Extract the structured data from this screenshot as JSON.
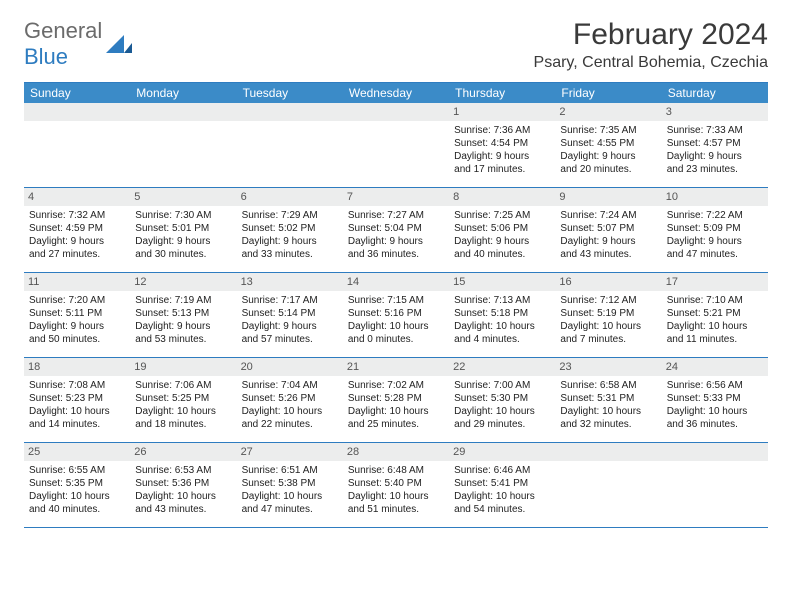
{
  "brand": {
    "part1": "General",
    "part2": "Blue"
  },
  "title": "February 2024",
  "location": "Psary, Central Bohemia, Czechia",
  "colors": {
    "header_bg": "#3b8bc8",
    "accent": "#2e7cc0",
    "daynum_bg": "#eceded",
    "text": "#222222",
    "page_bg": "#ffffff"
  },
  "day_headers": [
    "Sunday",
    "Monday",
    "Tuesday",
    "Wednesday",
    "Thursday",
    "Friday",
    "Saturday"
  ],
  "weeks": [
    [
      null,
      null,
      null,
      null,
      {
        "n": "1",
        "sr": "7:36 AM",
        "ss": "4:54 PM",
        "d1": "9 hours",
        "d2": "and 17 minutes."
      },
      {
        "n": "2",
        "sr": "7:35 AM",
        "ss": "4:55 PM",
        "d1": "9 hours",
        "d2": "and 20 minutes."
      },
      {
        "n": "3",
        "sr": "7:33 AM",
        "ss": "4:57 PM",
        "d1": "9 hours",
        "d2": "and 23 minutes."
      }
    ],
    [
      {
        "n": "4",
        "sr": "7:32 AM",
        "ss": "4:59 PM",
        "d1": "9 hours",
        "d2": "and 27 minutes."
      },
      {
        "n": "5",
        "sr": "7:30 AM",
        "ss": "5:01 PM",
        "d1": "9 hours",
        "d2": "and 30 minutes."
      },
      {
        "n": "6",
        "sr": "7:29 AM",
        "ss": "5:02 PM",
        "d1": "9 hours",
        "d2": "and 33 minutes."
      },
      {
        "n": "7",
        "sr": "7:27 AM",
        "ss": "5:04 PM",
        "d1": "9 hours",
        "d2": "and 36 minutes."
      },
      {
        "n": "8",
        "sr": "7:25 AM",
        "ss": "5:06 PM",
        "d1": "9 hours",
        "d2": "and 40 minutes."
      },
      {
        "n": "9",
        "sr": "7:24 AM",
        "ss": "5:07 PM",
        "d1": "9 hours",
        "d2": "and 43 minutes."
      },
      {
        "n": "10",
        "sr": "7:22 AM",
        "ss": "5:09 PM",
        "d1": "9 hours",
        "d2": "and 47 minutes."
      }
    ],
    [
      {
        "n": "11",
        "sr": "7:20 AM",
        "ss": "5:11 PM",
        "d1": "9 hours",
        "d2": "and 50 minutes."
      },
      {
        "n": "12",
        "sr": "7:19 AM",
        "ss": "5:13 PM",
        "d1": "9 hours",
        "d2": "and 53 minutes."
      },
      {
        "n": "13",
        "sr": "7:17 AM",
        "ss": "5:14 PM",
        "d1": "9 hours",
        "d2": "and 57 minutes."
      },
      {
        "n": "14",
        "sr": "7:15 AM",
        "ss": "5:16 PM",
        "d1": "10 hours",
        "d2": "and 0 minutes."
      },
      {
        "n": "15",
        "sr": "7:13 AM",
        "ss": "5:18 PM",
        "d1": "10 hours",
        "d2": "and 4 minutes."
      },
      {
        "n": "16",
        "sr": "7:12 AM",
        "ss": "5:19 PM",
        "d1": "10 hours",
        "d2": "and 7 minutes."
      },
      {
        "n": "17",
        "sr": "7:10 AM",
        "ss": "5:21 PM",
        "d1": "10 hours",
        "d2": "and 11 minutes."
      }
    ],
    [
      {
        "n": "18",
        "sr": "7:08 AM",
        "ss": "5:23 PM",
        "d1": "10 hours",
        "d2": "and 14 minutes."
      },
      {
        "n": "19",
        "sr": "7:06 AM",
        "ss": "5:25 PM",
        "d1": "10 hours",
        "d2": "and 18 minutes."
      },
      {
        "n": "20",
        "sr": "7:04 AM",
        "ss": "5:26 PM",
        "d1": "10 hours",
        "d2": "and 22 minutes."
      },
      {
        "n": "21",
        "sr": "7:02 AM",
        "ss": "5:28 PM",
        "d1": "10 hours",
        "d2": "and 25 minutes."
      },
      {
        "n": "22",
        "sr": "7:00 AM",
        "ss": "5:30 PM",
        "d1": "10 hours",
        "d2": "and 29 minutes."
      },
      {
        "n": "23",
        "sr": "6:58 AM",
        "ss": "5:31 PM",
        "d1": "10 hours",
        "d2": "and 32 minutes."
      },
      {
        "n": "24",
        "sr": "6:56 AM",
        "ss": "5:33 PM",
        "d1": "10 hours",
        "d2": "and 36 minutes."
      }
    ],
    [
      {
        "n": "25",
        "sr": "6:55 AM",
        "ss": "5:35 PM",
        "d1": "10 hours",
        "d2": "and 40 minutes."
      },
      {
        "n": "26",
        "sr": "6:53 AM",
        "ss": "5:36 PM",
        "d1": "10 hours",
        "d2": "and 43 minutes."
      },
      {
        "n": "27",
        "sr": "6:51 AM",
        "ss": "5:38 PM",
        "d1": "10 hours",
        "d2": "and 47 minutes."
      },
      {
        "n": "28",
        "sr": "6:48 AM",
        "ss": "5:40 PM",
        "d1": "10 hours",
        "d2": "and 51 minutes."
      },
      {
        "n": "29",
        "sr": "6:46 AM",
        "ss": "5:41 PM",
        "d1": "10 hours",
        "d2": "and 54 minutes."
      },
      null,
      null
    ]
  ],
  "labels": {
    "sunrise": "Sunrise:",
    "sunset": "Sunset:",
    "daylight": "Daylight:"
  }
}
